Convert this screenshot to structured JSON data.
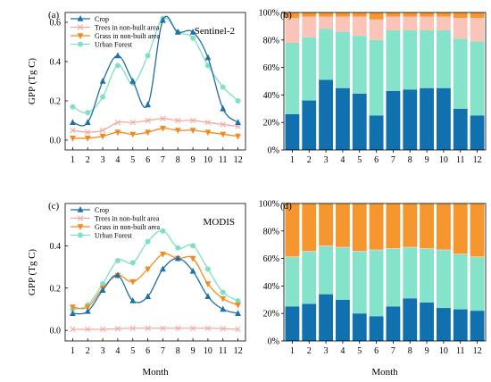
{
  "colors": {
    "crop": "#1f6fa8",
    "trees": "#f4aaa0",
    "grass": "#f48a1c",
    "urban": "#7fe0c4",
    "bar_crop": "#1170ae",
    "bar_urban": "#85e3cb",
    "bar_trees": "#fbc4b8",
    "bar_grass": "#f5962e"
  },
  "chart_data": [
    {
      "id": "a",
      "type": "line",
      "panel_label": "(a)",
      "annotation": "Sentinel-2",
      "ylabel": "GPP (Tg C)",
      "xlabel": "",
      "x": [
        1,
        2,
        3,
        4,
        5,
        6,
        7,
        8,
        9,
        10,
        11,
        12
      ],
      "ylim": [
        -0.05,
        0.65
      ],
      "yticks": [
        0.0,
        0.2,
        0.4,
        0.6
      ],
      "ytick_labels": [
        "0.0",
        "0.2",
        "0.4",
        "0.6"
      ],
      "legend": "top-left",
      "series": [
        {
          "name": "Crop",
          "key": "crop",
          "marker": "triangle",
          "values": [
            0.09,
            0.09,
            0.3,
            0.43,
            0.3,
            0.18,
            0.61,
            0.55,
            0.55,
            0.42,
            0.16,
            0.09
          ]
        },
        {
          "name": "Trees in non-built area",
          "key": "trees",
          "marker": "x",
          "values": [
            0.05,
            0.04,
            0.05,
            0.09,
            0.09,
            0.1,
            0.11,
            0.1,
            0.1,
            0.09,
            0.08,
            0.07
          ]
        },
        {
          "name": "Grass in non-built area",
          "key": "grass",
          "marker": "triangle-down",
          "values": [
            0.01,
            0.01,
            0.02,
            0.04,
            0.03,
            0.04,
            0.06,
            0.05,
            0.05,
            0.04,
            0.03,
            0.02
          ]
        },
        {
          "name": "Urban Forest",
          "key": "urban",
          "marker": "circle",
          "values": [
            0.17,
            0.14,
            0.22,
            0.38,
            0.29,
            0.43,
            0.62,
            0.55,
            0.52,
            0.38,
            0.27,
            0.2
          ]
        }
      ]
    },
    {
      "id": "b",
      "type": "bar",
      "stacked": true,
      "panel_label": "(b)",
      "categories": [
        "1",
        "2",
        "3",
        "4",
        "5",
        "6",
        "7",
        "8",
        "9",
        "10",
        "11",
        "12"
      ],
      "ylim": [
        0,
        100
      ],
      "yticks": [
        0,
        20,
        40,
        60,
        80,
        100
      ],
      "ytick_labels": [
        "0%",
        "20%",
        "40%",
        "60%",
        "80%",
        "100%"
      ],
      "series": [
        {
          "key": "bar_crop",
          "values": [
            26,
            36,
            51,
            45,
            41,
            25,
            43,
            44,
            45,
            45,
            30,
            25
          ]
        },
        {
          "key": "bar_urban",
          "values": [
            52,
            46,
            37,
            41,
            42,
            55,
            44,
            43,
            42,
            42,
            51,
            54
          ]
        },
        {
          "key": "bar_trees",
          "values": [
            18,
            15,
            9,
            11,
            14,
            15,
            10,
            10,
            10,
            10,
            15,
            17
          ]
        },
        {
          "key": "bar_grass",
          "values": [
            4,
            3,
            3,
            3,
            3,
            5,
            3,
            3,
            3,
            3,
            4,
            4
          ]
        }
      ]
    },
    {
      "id": "c",
      "type": "line",
      "panel_label": "(c)",
      "annotation": "MODIS",
      "ylabel": "GPP (Tg C)",
      "xlabel": "Month",
      "x": [
        1,
        2,
        3,
        4,
        5,
        6,
        7,
        8,
        9,
        10,
        11,
        12
      ],
      "ylim": [
        -0.05,
        0.6
      ],
      "yticks": [
        0.0,
        0.2,
        0.4
      ],
      "ytick_labels": [
        "0.0",
        "0.2",
        "0.4"
      ],
      "legend": "top-left",
      "series": [
        {
          "name": "Crop",
          "key": "crop",
          "marker": "triangle",
          "values": [
            0.08,
            0.09,
            0.19,
            0.26,
            0.14,
            0.16,
            0.29,
            0.34,
            0.28,
            0.16,
            0.1,
            0.08
          ]
        },
        {
          "name": "Trees in non-built area",
          "key": "trees",
          "marker": "x",
          "values": [
            0.005,
            0.005,
            0.005,
            0.008,
            0.01,
            0.01,
            0.01,
            0.01,
            0.01,
            0.01,
            0.008,
            0.005
          ]
        },
        {
          "name": "Grass in non-built area",
          "key": "grass",
          "marker": "triangle-down",
          "values": [
            0.11,
            0.11,
            0.2,
            0.26,
            0.23,
            0.29,
            0.36,
            0.34,
            0.34,
            0.22,
            0.15,
            0.12
          ]
        },
        {
          "name": "Urban Forest",
          "key": "urban",
          "marker": "circle",
          "values": [
            0.1,
            0.12,
            0.22,
            0.33,
            0.32,
            0.42,
            0.47,
            0.39,
            0.4,
            0.29,
            0.18,
            0.14
          ]
        }
      ]
    },
    {
      "id": "d",
      "type": "bar",
      "stacked": true,
      "panel_label": "(d)",
      "xlabel": "Month",
      "categories": [
        "1",
        "2",
        "3",
        "4",
        "5",
        "6",
        "7",
        "8",
        "9",
        "10",
        "11",
        "12"
      ],
      "ylim": [
        0,
        100
      ],
      "yticks": [
        0,
        20,
        40,
        60,
        80,
        100
      ],
      "ytick_labels": [
        "0%",
        "20%",
        "40%",
        "60%",
        "80%",
        "100%"
      ],
      "series": [
        {
          "key": "bar_crop",
          "values": [
            25,
            27,
            34,
            30,
            20,
            18,
            25,
            31,
            28,
            24,
            23,
            22
          ]
        },
        {
          "key": "bar_urban",
          "values": [
            36,
            38,
            35,
            38,
            45,
            48,
            42,
            37,
            39,
            42,
            40,
            39
          ]
        },
        {
          "key": "bar_trees",
          "values": [
            0.5,
            0.5,
            0.5,
            0.5,
            0.5,
            0.5,
            0.5,
            0.5,
            0.5,
            0.5,
            0.5,
            0.5
          ]
        },
        {
          "key": "bar_grass",
          "values": [
            38.5,
            34.5,
            30.5,
            31.5,
            34.5,
            33.5,
            32.5,
            31.5,
            32.5,
            33.5,
            36.5,
            38.5
          ]
        }
      ]
    }
  ]
}
